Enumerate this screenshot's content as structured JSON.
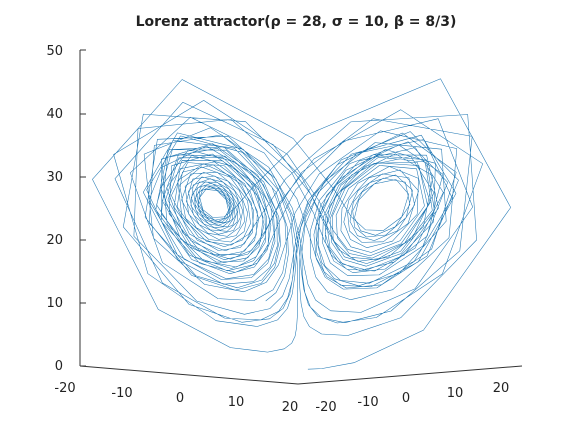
{
  "chart_data": {
    "type": "line",
    "title": "Lorenz attractor(ρ = 28, σ = 10, β = 8/3)",
    "parameters": {
      "rho": 28,
      "sigma": 10,
      "beta": "8/3"
    },
    "initial_point": {
      "x": 1,
      "y": 1,
      "z": 1
    },
    "projection": "3d",
    "grid": false,
    "series": [
      {
        "line_color": "#1f77b4"
      }
    ],
    "axes": {
      "x": {
        "ticks": [
          "-20",
          "-10",
          "0",
          "10",
          "20"
        ],
        "lim": [
          -20,
          20
        ]
      },
      "y": {
        "ticks": [
          "-20",
          "-10",
          "0",
          "10",
          "20"
        ],
        "lim": [
          -25,
          25
        ]
      },
      "z": {
        "ticks": [
          "0",
          "10",
          "20",
          "30",
          "40",
          "50"
        ],
        "lim": [
          0,
          50
        ]
      }
    }
  }
}
